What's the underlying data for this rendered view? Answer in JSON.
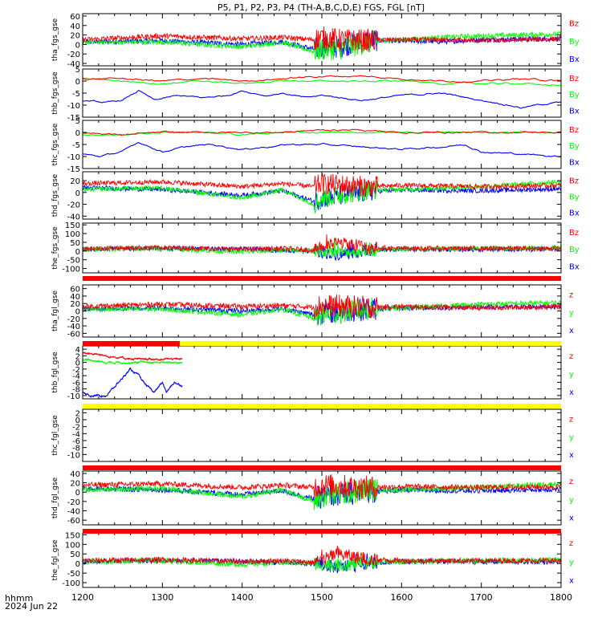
{
  "title": "P5, P1, P2, P3, P4 (TH-A,B,C,D,E) FGS, FGL [nT]",
  "x_axis": {
    "label_line1": "hhmm",
    "label_line2": "2024 Jun 22",
    "ticks": [
      "1200",
      "1300",
      "1400",
      "1500",
      "1600",
      "1700",
      "1800"
    ]
  },
  "colors": {
    "x": "#0000ff",
    "y": "#00ff00",
    "z": "#ff0000",
    "flag_red": "#ff0000",
    "flag_yellow": "#ffff00"
  },
  "chart_data": {
    "type": "line",
    "x_range": [
      1200,
      1800
    ],
    "x_unit": "hhmm UT",
    "panels": [
      {
        "ylabel": "tha_fgs_gse",
        "ylim": [
          -45,
          65
        ],
        "yticks": [
          "60",
          "40",
          "20",
          "0",
          "-20",
          "-40"
        ],
        "legend": [
          "Bz",
          "By",
          "Bx"
        ],
        "style": "noisy",
        "series": [
          {
            "name": "Bx",
            "x": [
              1200,
              1300,
              1400,
              1450,
              1490,
              1500,
              1520,
              1560,
              1580,
              1650,
              1700,
              1800
            ],
            "y": [
              5,
              8,
              0,
              6,
              -10,
              -5,
              -5,
              10,
              8,
              6,
              10,
              12
            ]
          },
          {
            "name": "By",
            "x": [
              1200,
              1300,
              1400,
              1450,
              1490,
              1500,
              1520,
              1560,
              1580,
              1650,
              1700,
              1800
            ],
            "y": [
              5,
              5,
              -5,
              5,
              -15,
              -10,
              -10,
              5,
              8,
              15,
              18,
              22
            ]
          },
          {
            "name": "Bz",
            "x": [
              1200,
              1300,
              1400,
              1450,
              1490,
              1500,
              1520,
              1560,
              1580,
              1650,
              1700,
              1800
            ],
            "y": [
              10,
              18,
              12,
              15,
              10,
              15,
              10,
              8,
              10,
              10,
              8,
              12
            ]
          }
        ]
      },
      {
        "ylabel": "thb_fgs_gse",
        "ylim": [
          -15,
          5
        ],
        "yticks": [
          "5",
          "0",
          "-5",
          "-10",
          "-15"
        ],
        "legend": [
          "Bz",
          "By",
          "Bx"
        ],
        "style": "smooth",
        "series": [
          {
            "name": "Bx",
            "x": [
              1200,
              1230,
              1250,
              1270,
              1290,
              1320,
              1350,
              1380,
              1400,
              1430,
              1450,
              1480,
              1500,
              1550,
              1600,
              1650,
              1700,
              1720,
              1750,
              1790,
              1800
            ],
            "y": [
              -8,
              -9,
              -8,
              -4,
              -8,
              -6,
              -7,
              -6,
              -4,
              -6,
              -5,
              -7,
              -6,
              -8,
              -6,
              -5,
              -8,
              -9,
              -11,
              -9,
              -9
            ]
          },
          {
            "name": "By",
            "x": [
              1200,
              1250,
              1300,
              1350,
              1400,
              1450,
              1500,
              1550,
              1600,
              1650,
              1700,
              1750,
              1800
            ],
            "y": [
              1,
              0,
              -1,
              0,
              -1,
              0,
              0,
              0,
              0,
              -1,
              -1,
              -1,
              -2
            ]
          },
          {
            "name": "Bz",
            "x": [
              1200,
              1250,
              1300,
              1350,
              1400,
              1450,
              1500,
              1550,
              1600,
              1650,
              1700,
              1750,
              1800
            ],
            "y": [
              1,
              1,
              0,
              1,
              0,
              1,
              2,
              2,
              1,
              0,
              0,
              1,
              0
            ]
          }
        ]
      },
      {
        "ylabel": "thc_fgs_gse",
        "ylim": [
          -15,
          5
        ],
        "yticks": [
          "5",
          "0",
          "-5",
          "-10",
          "-15"
        ],
        "legend": [
          "Bz",
          "By",
          "Bx"
        ],
        "style": "smooth",
        "series": [
          {
            "name": "Bx",
            "x": [
              1200,
              1220,
              1250,
              1270,
              1300,
              1330,
              1360,
              1400,
              1430,
              1460,
              1500,
              1550,
              1600,
              1650,
              1680,
              1700,
              1750,
              1800
            ],
            "y": [
              -9,
              -10,
              -8,
              -4,
              -8,
              -6,
              -5,
              -7,
              -6,
              -5,
              -5,
              -6,
              -7,
              -6,
              -5,
              -8,
              -9,
              -10
            ]
          },
          {
            "name": "By",
            "x": [
              1200,
              1250,
              1300,
              1350,
              1400,
              1450,
              1500,
              1550,
              1600,
              1650,
              1700,
              1750,
              1800
            ],
            "y": [
              -1,
              -1,
              0,
              0,
              -1,
              0,
              0,
              0,
              0,
              0,
              0,
              0,
              0
            ]
          },
          {
            "name": "Bz",
            "x": [
              1200,
              1250,
              1300,
              1350,
              1400,
              1450,
              1500,
              1550,
              1600,
              1650,
              1700,
              1750,
              1800
            ],
            "y": [
              0,
              -1,
              0,
              0,
              0,
              0,
              1,
              1,
              0,
              0,
              0,
              0,
              0
            ]
          }
        ]
      },
      {
        "ylabel": "thd_fgs_gse",
        "ylim": [
          -45,
          35
        ],
        "yticks": [
          "20",
          "0",
          "-20",
          "-40"
        ],
        "legend": [
          "Bz",
          "By",
          "Bx"
        ],
        "style": "noisy",
        "series": [
          {
            "name": "Bx",
            "x": [
              1200,
              1300,
              1400,
              1450,
              1490,
              1500,
              1560,
              1600,
              1700,
              1800
            ],
            "y": [
              8,
              5,
              -5,
              3,
              -15,
              -10,
              2,
              4,
              3,
              6
            ]
          },
          {
            "name": "By",
            "x": [
              1200,
              1300,
              1400,
              1450,
              1490,
              1500,
              1560,
              1600,
              1700,
              1800
            ],
            "y": [
              5,
              8,
              -10,
              5,
              -20,
              -10,
              5,
              5,
              10,
              18
            ]
          },
          {
            "name": "Bz",
            "x": [
              1200,
              1300,
              1400,
              1450,
              1490,
              1500,
              1560,
              1600,
              1700,
              1800
            ],
            "y": [
              15,
              18,
              10,
              15,
              10,
              15,
              10,
              12,
              10,
              12
            ]
          }
        ]
      },
      {
        "ylabel": "the_fgs_gse",
        "ylim": [
          -125,
          160
        ],
        "yticks": [
          "150",
          "100",
          "50",
          "0",
          "-50",
          "-100"
        ],
        "legend": [
          "Bz",
          "By",
          "Bx"
        ],
        "style": "spiky",
        "series": [
          {
            "name": "Bx",
            "x": [
              1200,
              1300,
              1400,
              1450,
              1490,
              1520,
              1560,
              1600,
              1700,
              1800
            ],
            "y": [
              10,
              15,
              10,
              5,
              0,
              -20,
              5,
              10,
              10,
              10
            ]
          },
          {
            "name": "By",
            "x": [
              1200,
              1300,
              1400,
              1450,
              1490,
              1520,
              1560,
              1600,
              1700,
              1800
            ],
            "y": [
              10,
              15,
              -5,
              5,
              0,
              -10,
              5,
              10,
              15,
              18
            ]
          },
          {
            "name": "Bz",
            "x": [
              1200,
              1300,
              1400,
              1450,
              1490,
              1520,
              1560,
              1600,
              1700,
              1800
            ],
            "y": [
              15,
              20,
              10,
              15,
              5,
              50,
              20,
              15,
              15,
              15
            ]
          }
        ]
      },
      {
        "ylabel": "tha_fgl_gse",
        "ylim": [
          -70,
          70
        ],
        "yticks": [
          "60",
          "40",
          "20",
          "0",
          "-20",
          "-40",
          "-60"
        ],
        "legend": [
          "z",
          "y",
          "x"
        ],
        "style": "noisy",
        "series": [
          {
            "name": "x",
            "x": [
              1200,
              1300,
              1400,
              1450,
              1490,
              1500,
              1560,
              1600,
              1700,
              1800
            ],
            "y": [
              5,
              8,
              0,
              6,
              -10,
              -5,
              5,
              8,
              10,
              12
            ]
          },
          {
            "name": "y",
            "x": [
              1200,
              1300,
              1400,
              1450,
              1490,
              1500,
              1560,
              1600,
              1700,
              1800
            ],
            "y": [
              5,
              5,
              -10,
              5,
              -20,
              -10,
              5,
              8,
              18,
              22
            ]
          },
          {
            "name": "z",
            "x": [
              1200,
              1300,
              1400,
              1450,
              1490,
              1500,
              1560,
              1600,
              1700,
              1800
            ],
            "y": [
              12,
              18,
              12,
              15,
              10,
              15,
              10,
              12,
              8,
              12
            ]
          }
        ]
      },
      {
        "ylabel": "thb_fgl_gse",
        "ylim": [
          -11,
          5
        ],
        "yticks": [
          "4",
          "2",
          "0",
          "-2",
          "-4",
          "-6",
          "-8",
          "-10"
        ],
        "legend": [
          "z",
          "y",
          "x"
        ],
        "style": "smooth",
        "x_end": 1325,
        "series": [
          {
            "name": "x",
            "x": [
              1200,
              1210,
              1230,
              1245,
              1260,
              1270,
              1280,
              1290,
              1300,
              1305,
              1315,
              1325
            ],
            "y": [
              -9,
              -10,
              -10,
              -6,
              -2,
              -4,
              -7,
              -9,
              -6,
              -9,
              -6,
              -7
            ]
          },
          {
            "name": "y",
            "x": [
              1200,
              1230,
              1260,
              1290,
              1325
            ],
            "y": [
              1,
              0,
              0,
              0,
              0
            ]
          },
          {
            "name": "z",
            "x": [
              1200,
              1230,
              1260,
              1290,
              1325
            ],
            "y": [
              3,
              2,
              1,
              1,
              1
            ]
          }
        ]
      },
      {
        "ylabel": "thc_fgl_gse",
        "ylim": [
          -12,
          3
        ],
        "yticks": [
          "2",
          "0",
          "-2",
          "-4",
          "-6",
          "-8",
          "-10"
        ],
        "legend": [
          "z",
          "y",
          "x"
        ],
        "style": "empty",
        "series": []
      },
      {
        "ylabel": "thd_fgl_gse",
        "ylim": [
          -70,
          45
        ],
        "yticks": [
          "40",
          "20",
          "0",
          "-20",
          "-40",
          "-60"
        ],
        "legend": [
          "z",
          "y",
          "x"
        ],
        "style": "noisy",
        "series": [
          {
            "name": "x",
            "x": [
              1200,
              1300,
              1400,
              1450,
              1490,
              1500,
              1560,
              1600,
              1700,
              1800
            ],
            "y": [
              8,
              5,
              -5,
              3,
              -15,
              -10,
              2,
              4,
              3,
              6
            ]
          },
          {
            "name": "y",
            "x": [
              1200,
              1300,
              1400,
              1450,
              1490,
              1500,
              1560,
              1600,
              1700,
              1800
            ],
            "y": [
              5,
              8,
              -10,
              5,
              -20,
              -10,
              5,
              5,
              10,
              18
            ]
          },
          {
            "name": "z",
            "x": [
              1200,
              1300,
              1400,
              1450,
              1490,
              1500,
              1560,
              1600,
              1700,
              1800
            ],
            "y": [
              15,
              18,
              10,
              15,
              10,
              15,
              10,
              12,
              10,
              12
            ]
          }
        ]
      },
      {
        "ylabel": "the_fgl_gse",
        "ylim": [
          -125,
          160
        ],
        "yticks": [
          "150",
          "100",
          "50",
          "0",
          "-50",
          "-100"
        ],
        "legend": [
          "z",
          "y",
          "x"
        ],
        "style": "spiky",
        "series": [
          {
            "name": "x",
            "x": [
              1200,
              1300,
              1400,
              1450,
              1490,
              1520,
              1560,
              1600,
              1700,
              1800
            ],
            "y": [
              10,
              15,
              10,
              5,
              0,
              -20,
              5,
              10,
              10,
              10
            ]
          },
          {
            "name": "y",
            "x": [
              1200,
              1300,
              1400,
              1450,
              1490,
              1520,
              1560,
              1600,
              1700,
              1800
            ],
            "y": [
              10,
              15,
              -5,
              5,
              0,
              -10,
              5,
              10,
              15,
              18
            ]
          },
          {
            "name": "z",
            "x": [
              1200,
              1300,
              1400,
              1450,
              1490,
              1520,
              1560,
              1600,
              1700,
              1800
            ],
            "y": [
              15,
              20,
              10,
              15,
              5,
              50,
              20,
              15,
              15,
              15
            ]
          }
        ]
      }
    ],
    "flag_bars": [
      {
        "after_panel": 4,
        "segments": [
          {
            "from": 1200,
            "to": 1800,
            "color": "red"
          }
        ]
      },
      {
        "after_panel": 5,
        "segments": [
          {
            "from": 1200,
            "to": 1322,
            "color": "red"
          },
          {
            "from": 1322,
            "to": 1800,
            "color": "yellow"
          }
        ]
      },
      {
        "after_panel": 6,
        "segments": [
          {
            "from": 1200,
            "to": 1800,
            "color": "yellow"
          }
        ]
      },
      {
        "after_panel": 7,
        "segments": [
          {
            "from": 1200,
            "to": 1800,
            "color": "red"
          }
        ]
      },
      {
        "after_panel": 8,
        "segments": [
          {
            "from": 1200,
            "to": 1800,
            "color": "red"
          }
        ]
      }
    ]
  }
}
